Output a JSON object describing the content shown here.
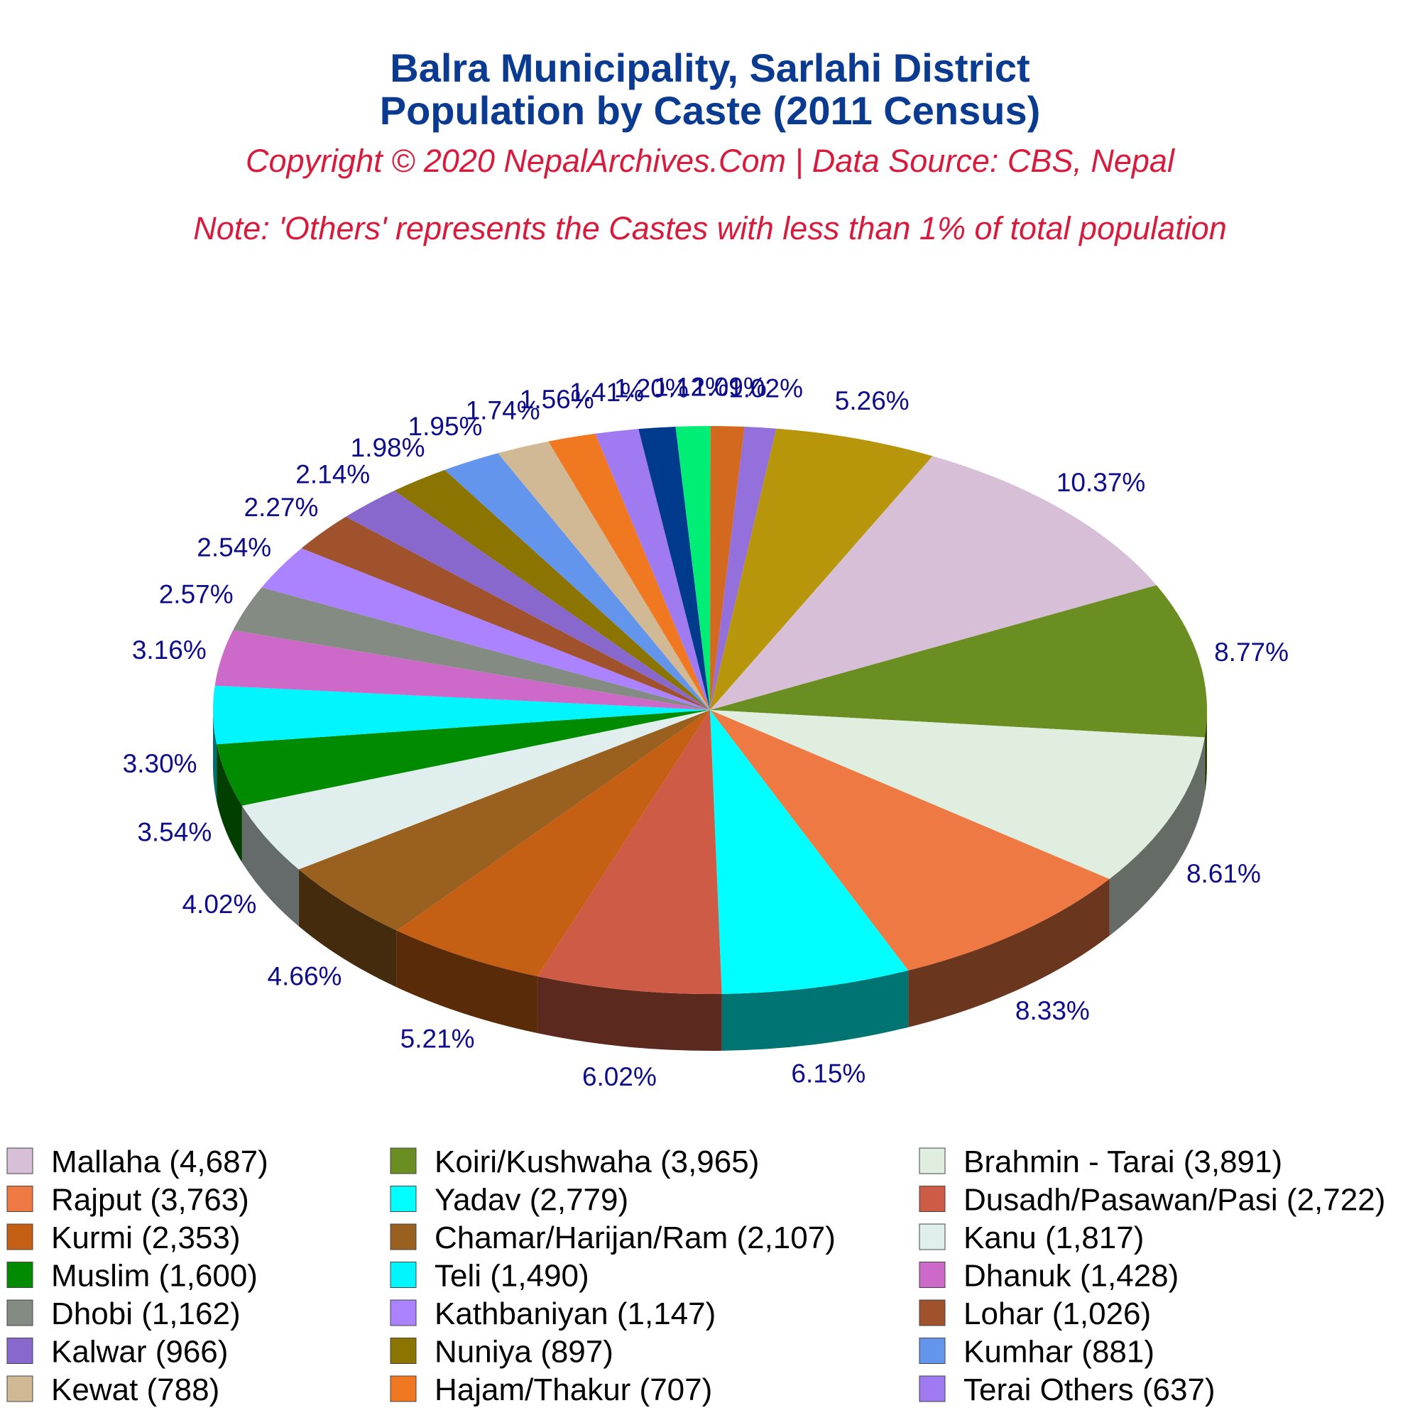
{
  "chart_data": {
    "type": "pie",
    "title_lines": [
      "Balra Municipality, Sarlahi District",
      "Population by Caste (2011 Census)"
    ],
    "subtitle": "Copyright © 2020 NepalArchives.Com | Data Source: CBS, Nepal",
    "note": "Note: 'Others' represents the Castes with less than 1% of total population",
    "slices": [
      {
        "label": "Mallaha (4,687)",
        "value": 4687,
        "percent_label": "10.37%",
        "color": "#d8bfd8"
      },
      {
        "label": "Koiri/Kushwaha (3,965)",
        "value": 3965,
        "percent_label": "8.77%",
        "color": "#6b8e23"
      },
      {
        "label": "Brahmin - Tarai (3,891)",
        "value": 3891,
        "percent_label": "8.61%",
        "color": "#e0eee0"
      },
      {
        "label": "Rajput (3,763)",
        "value": 3763,
        "percent_label": "8.33%",
        "color": "#ee7942"
      },
      {
        "label": "Yadav (2,779)",
        "value": 2779,
        "percent_label": "6.15%",
        "color": "#00ffff"
      },
      {
        "label": "Dusadh/Pasawan/Pasi (2,722)",
        "value": 2722,
        "percent_label": "6.02%",
        "color": "#cd5b45"
      },
      {
        "label": "Kurmi (2,353)",
        "value": 2353,
        "percent_label": "5.21%",
        "color": "#c55f14"
      },
      {
        "label": "Chamar/Harijan/Ram (2,107)",
        "value": 2107,
        "percent_label": "4.66%",
        "color": "#996020"
      },
      {
        "label": "Kanu (1,817)",
        "value": 1817,
        "percent_label": "4.02%",
        "color": "#e0eeee"
      },
      {
        "label": "Muslim (1,600)",
        "value": 1600,
        "percent_label": "3.54%",
        "color": "#008b00"
      },
      {
        "label": "Teli (1,490)",
        "value": 1490,
        "percent_label": "3.30%",
        "color": "#00f5ff"
      },
      {
        "label": "Dhanuk (1,428)",
        "value": 1428,
        "percent_label": "3.16%",
        "color": "#cd69c9"
      },
      {
        "label": "Dhobi (1,162)",
        "value": 1162,
        "percent_label": "2.57%",
        "color": "#838b83"
      },
      {
        "label": "Kathbaniyan (1,147)",
        "value": 1147,
        "percent_label": "2.54%",
        "color": "#ab82ff"
      },
      {
        "label": "Lohar (1,026)",
        "value": 1026,
        "percent_label": "2.27%",
        "color": "#a0522d"
      },
      {
        "label": "Kalwar (966)",
        "value": 966,
        "percent_label": "2.14%",
        "color": "#8968cd"
      },
      {
        "label": "Nuniya (897)",
        "value": 897,
        "percent_label": "1.98%",
        "color": "#8b7500"
      },
      {
        "label": "Kumhar (881)",
        "value": 881,
        "percent_label": "1.95%",
        "color": "#6495ed"
      },
      {
        "label": "Kewat (788)",
        "value": 788,
        "percent_label": "1.74%",
        "color": "#d2b995"
      },
      {
        "label": "Hajam/Thakur (707)",
        "value": 707,
        "percent_label": "1.56%",
        "color": "#f07820"
      },
      {
        "label": "Terai Others (637)",
        "value": 637,
        "percent_label": "1.41%",
        "color": "#a07af0"
      },
      {
        "label": "",
        "value": 540,
        "percent_label": "1.20%",
        "color": "#003a8c"
      },
      {
        "label": "",
        "value": 506,
        "percent_label": "1.12%",
        "color": "#00ee76"
      },
      {
        "label": "",
        "value": 493,
        "percent_label": "1.09%",
        "color": "#d2691e"
      },
      {
        "label": "",
        "value": 461,
        "percent_label": "1.02%",
        "color": "#9370db"
      },
      {
        "label": "",
        "value": 2378,
        "percent_label": "5.26%",
        "color": "#b8960c"
      }
    ]
  }
}
